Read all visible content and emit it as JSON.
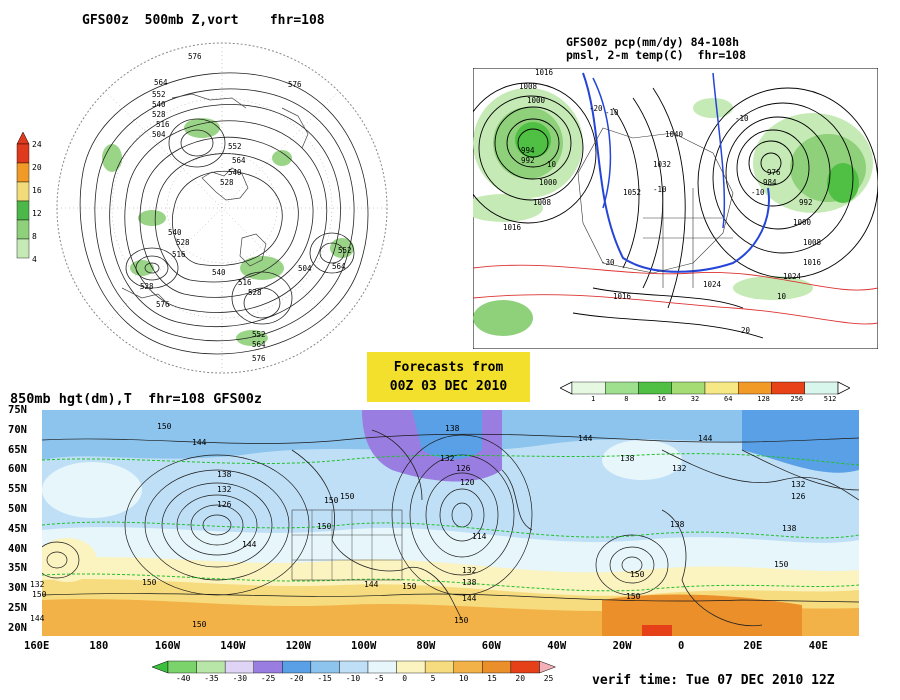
{
  "panel_500mb": {
    "title": "GFS00z  500mb Z,vort    fhr=108",
    "contour_labels": [
      "576",
      "564",
      "552",
      "540",
      "528",
      "516",
      "504",
      "540",
      "528",
      "516",
      "576",
      "564",
      "552",
      "540",
      "528",
      "540",
      "516",
      "528",
      "576",
      "552",
      "564",
      "576",
      "504",
      "552",
      "564",
      "528"
    ],
    "colorbar": {
      "ticks": [
        "24",
        "20",
        "16",
        "12",
        "8",
        "4"
      ],
      "colors": [
        "#e03a1e",
        "#f29a28",
        "#f2dc7a",
        "#4db84a",
        "#8fd07a",
        "#c6eab6"
      ]
    }
  },
  "panel_pcp": {
    "title_line1": "GFS00z pcp(mm/dy) 84-108h",
    "title_line2": "pmsl, 2-m temp(C)  fhr=108",
    "labels": [
      "1016",
      "1008",
      "1000",
      "994",
      "992",
      "1000",
      "1008",
      "1016",
      "1052",
      "1040",
      "1032",
      "1024",
      "1016",
      "976",
      "984",
      "992",
      "1000",
      "1008",
      "1016",
      "1024",
      "-10",
      "-20",
      "-10",
      "-10",
      "-10",
      "10",
      "10",
      "20",
      "-30"
    ],
    "colorbar": {
      "ticks": [
        "1",
        "8",
        "16",
        "32",
        "64",
        "128",
        "256",
        "512"
      ],
      "colors": [
        "#e6f8e2",
        "#9fe08f",
        "#4fc043",
        "#a6dc74",
        "#f7e886",
        "#f29a28",
        "#e84218",
        "#d8f6ec"
      ]
    }
  },
  "forecast_box": {
    "line1": "Forecasts from",
    "line2": "00Z 03 DEC 2010"
  },
  "panel_850mb": {
    "title": "850mb hgt(dm),T  fhr=108 GFS00z",
    "lat_labels": [
      "75N",
      "70N",
      "65N",
      "60N",
      "55N",
      "50N",
      "45N",
      "40N",
      "35N",
      "30N",
      "25N",
      "20N"
    ],
    "lon_labels": [
      "160E",
      "180",
      "160W",
      "140W",
      "120W",
      "100W",
      "80W",
      "60W",
      "40W",
      "20W",
      "0",
      "20E",
      "40E"
    ],
    "contour_labels": [
      "150",
      "144",
      "138",
      "132",
      "126",
      "150",
      "150",
      "150",
      "144",
      "150",
      "138",
      "132",
      "126",
      "120",
      "114",
      "132",
      "138",
      "144",
      "150",
      "144",
      "138",
      "132",
      "150",
      "144",
      "138",
      "132",
      "126",
      "150",
      "150",
      "144",
      "150",
      "138",
      "150",
      "132",
      "144",
      "150"
    ],
    "colorbar": {
      "ticks": [
        "-40",
        "-35",
        "-30",
        "-25",
        "-20",
        "-15",
        "-10",
        "-5",
        "0",
        "5",
        "10",
        "15",
        "20",
        "25"
      ],
      "colors": [
        "#3cbf3c",
        "#7bd36b",
        "#b8e6a8",
        "#dfd4f5",
        "#9a7de0",
        "#5aa0e6",
        "#8cc4ee",
        "#bfdff6",
        "#e6f6fb",
        "#fbf3c0",
        "#f6dc7e",
        "#f2b248",
        "#eb8f2b",
        "#e54018",
        "#f4b0b8"
      ]
    }
  },
  "verif_time": "verif time: Tue 07 DEC 2010 12Z"
}
